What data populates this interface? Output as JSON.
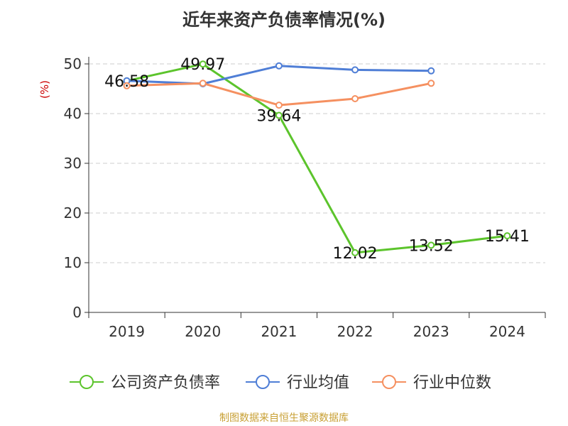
{
  "title": "近年来资产负债率情况(%)",
  "footer": "制图数据来自恒生聚源数据库",
  "colors": {
    "company": "#5cc42c",
    "industry_avg": "#4f7ed6",
    "industry_median": "#f59060",
    "axis": "#333333",
    "grid": "#cccccc",
    "ylabel": "#cc0000",
    "footer": "#c8a035"
  },
  "chart_data": {
    "type": "line",
    "title": "近年来资产负债率情况(%)",
    "ylabel": "(%)",
    "xlabel": "",
    "ylim": [
      0,
      50
    ],
    "yticks": [
      0,
      10,
      20,
      30,
      40,
      50
    ],
    "grid": true,
    "legend_position": "bottom",
    "categories": [
      "2019",
      "2020",
      "2021",
      "2022",
      "2023",
      "2024"
    ],
    "series": [
      {
        "name": "公司资产负债率",
        "values": [
          46.58,
          49.97,
          39.64,
          12.02,
          13.52,
          15.41
        ],
        "labels": [
          "46.58",
          "49.97",
          "39.64",
          "12.02",
          "13.52",
          "15.41"
        ]
      },
      {
        "name": "行业均值",
        "values": [
          46.6,
          46.0,
          49.6,
          48.8,
          48.6,
          null
        ]
      },
      {
        "name": "行业中位数",
        "values": [
          45.6,
          46.1,
          41.7,
          43.0,
          46.1,
          null
        ]
      }
    ]
  }
}
